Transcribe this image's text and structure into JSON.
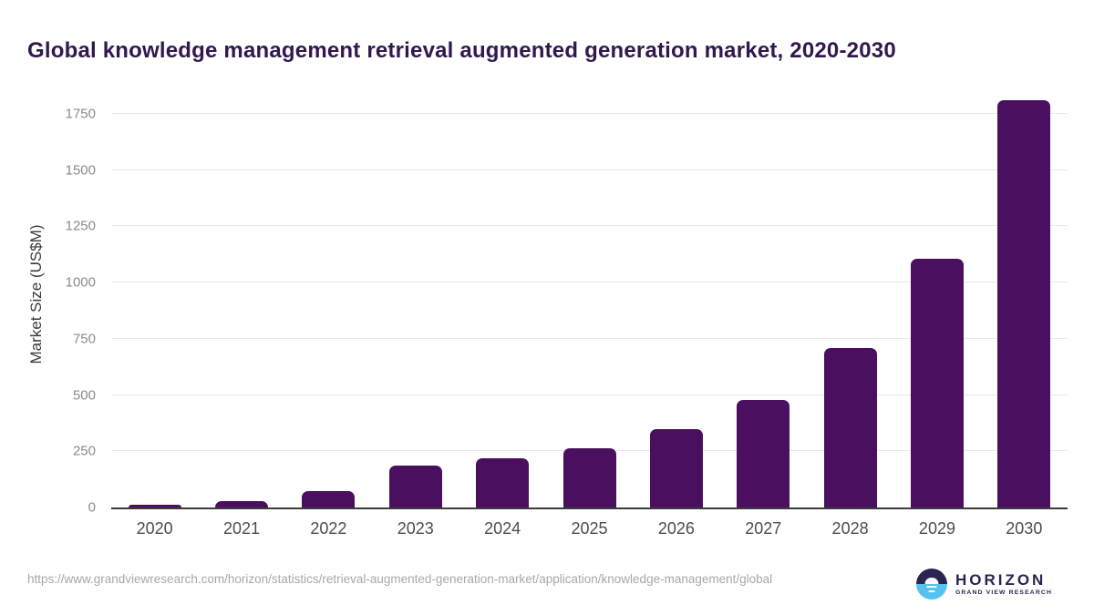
{
  "title": "Global knowledge management retrieval augmented generation market, 2020-2030",
  "chart_data": {
    "type": "bar",
    "title": "Global knowledge management retrieval augmented generation market, 2020-2030",
    "categories": [
      "2020",
      "2021",
      "2022",
      "2023",
      "2024",
      "2025",
      "2026",
      "2027",
      "2028",
      "2029",
      "2030"
    ],
    "values": [
      12,
      30,
      72,
      188,
      218,
      264,
      350,
      480,
      708,
      1107,
      1813
    ],
    "xlabel": "",
    "ylabel": "Market Size (US$M)",
    "ylim": [
      0,
      1892
    ],
    "yticks": [
      0,
      250,
      500,
      750,
      1000,
      1250,
      1500,
      1750
    ],
    "grid": true,
    "legend": "none",
    "bar_color": "#4a105f"
  },
  "footer": {
    "source_url": "https://www.grandviewresearch.com/horizon/statistics/retrieval-augmented-generation-market/application/knowledge-management/global",
    "logo": {
      "brand": "HORIZON",
      "sub_brand": "GRAND VIEW RESEARCH",
      "circle_icon": "horizon-sunset-icon"
    }
  },
  "colors": {
    "bar": "#4a105f",
    "title_text": "#31184f",
    "axis_line": "#3c3c3c",
    "gridline": "#e9e9e9",
    "x_tick_text": "#4d4d4d",
    "y_tick_text": "#8b8b8b",
    "url_text": "#a8a8a8",
    "logo_navy": "#2b2350",
    "logo_blue": "#56c3ef"
  }
}
